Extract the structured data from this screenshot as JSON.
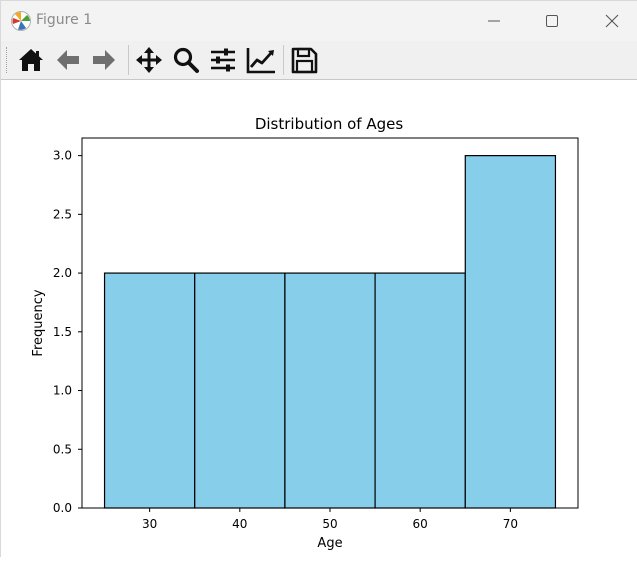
{
  "window": {
    "title": "Figure 1"
  },
  "toolbar": {
    "buttons": [
      {
        "icon": "home-icon"
      },
      {
        "icon": "back-arrow-icon"
      },
      {
        "icon": "forward-arrow-icon"
      },
      {
        "icon": "pan-move-icon"
      },
      {
        "icon": "zoom-magnifier-icon"
      },
      {
        "icon": "configure-subplots-icon"
      },
      {
        "icon": "edit-axis-icon"
      },
      {
        "icon": "save-disk-icon"
      }
    ]
  },
  "colors": {
    "bar_fill": "#87ceeb",
    "bar_edge": "#000000",
    "toolbar_bg": "#f0f0f0",
    "titlebar_bg": "#f3f3f3"
  },
  "chart_data": {
    "type": "bar",
    "title": "Distribution of Ages",
    "xlabel": "Age",
    "ylabel": "Frequency",
    "bins": [
      [
        25,
        35
      ],
      [
        35,
        45
      ],
      [
        45,
        55
      ],
      [
        55,
        65
      ],
      [
        65,
        75
      ]
    ],
    "values": [
      2,
      2,
      2,
      2,
      3
    ],
    "xlim": [
      22.5,
      77.5
    ],
    "ylim": [
      0,
      3.15
    ],
    "xticks": [
      30,
      40,
      50,
      60,
      70
    ],
    "xtick_labels": [
      "30",
      "40",
      "50",
      "60",
      "70"
    ],
    "yticks": [
      0,
      0.5,
      1.0,
      1.5,
      2.0,
      2.5,
      3.0
    ],
    "ytick_labels": [
      "0.0",
      "0.5",
      "1.0",
      "1.5",
      "2.0",
      "2.5",
      "3.0"
    ],
    "grid": false,
    "legend": false
  }
}
